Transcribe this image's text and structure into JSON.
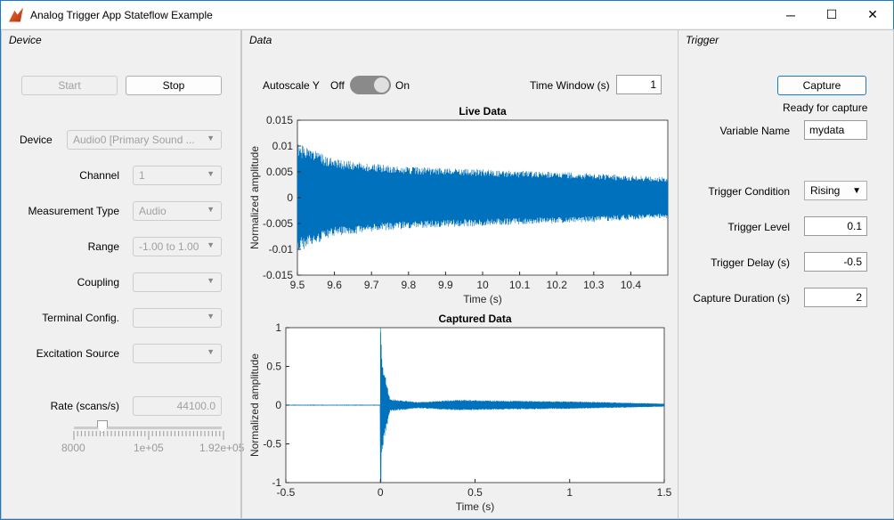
{
  "window": {
    "title": "Analog Trigger App Stateflow Example",
    "icon": "matlab-icon",
    "minimize": "─",
    "maximize": "☐",
    "close": "✕"
  },
  "device": {
    "title": "Device",
    "start": "Start",
    "stop": "Stop",
    "fields": [
      {
        "label": "Device",
        "value": "Audio0 [Primary Sound ..."
      },
      {
        "label": "Channel",
        "value": "1"
      },
      {
        "label": "Measurement Type",
        "value": "Audio"
      },
      {
        "label": "Range",
        "value": "-1.00 to 1.00"
      },
      {
        "label": "Coupling",
        "value": ""
      },
      {
        "label": "Terminal Config.",
        "value": ""
      },
      {
        "label": "Excitation Source",
        "value": ""
      }
    ],
    "rate_label": "Rate (scans/s)",
    "rate_value": "44100.0",
    "slider": {
      "min_label": "8000",
      "mid_label": "1e+05",
      "max_label": "1.92e+05",
      "min": 8000,
      "max": 192000,
      "value": 44100
    }
  },
  "data": {
    "title": "Data",
    "autoscale_label": "Autoscale Y",
    "off": "Off",
    "on": "On",
    "autoscale_on": false,
    "time_window_label": "Time Window (s)",
    "time_window": "1"
  },
  "trigger": {
    "title": "Trigger",
    "capture": "Capture",
    "status": "Ready for capture",
    "variable_label": "Variable Name",
    "variable": "mydata",
    "condition_label": "Trigger Condition",
    "condition": "Rising",
    "level_label": "Trigger Level",
    "level": "0.1",
    "delay_label": "Trigger Delay (s)",
    "delay": "-0.5",
    "duration_label": "Capture Duration (s)",
    "duration": "2"
  },
  "chart_data": [
    {
      "type": "line",
      "title": "Live Data",
      "xlabel": "Time (s)",
      "ylabel": "Normalized amplitude",
      "xlim": [
        9.5,
        10.5
      ],
      "ylim": [
        -0.015,
        0.015
      ],
      "xticks": [
        "9.5",
        "9.6",
        "9.7",
        "9.8",
        "9.9",
        "10",
        "10.1",
        "10.2",
        "10.3",
        "10.4"
      ],
      "yticks": [
        "0.015",
        "0.01",
        "0.005",
        "0",
        "-0.005",
        "-0.01",
        "-0.015"
      ],
      "color": "#0072bd",
      "envelope": {
        "x": [
          9.5,
          9.6,
          9.7,
          9.8,
          9.9,
          10.0,
          10.1,
          10.2,
          10.3,
          10.4,
          10.5
        ],
        "amp": [
          0.0105,
          0.0075,
          0.0066,
          0.006,
          0.0057,
          0.0055,
          0.0052,
          0.005,
          0.0047,
          0.0043,
          0.004
        ]
      }
    },
    {
      "type": "line",
      "title": "Captured Data",
      "xlabel": "Time (s)",
      "ylabel": "Normalized amplitude",
      "xlim": [
        -0.5,
        1.5
      ],
      "ylim": [
        -1,
        1
      ],
      "xticks": [
        "-0.5",
        "0",
        "0.5",
        "1",
        "1.5"
      ],
      "yticks": [
        "1",
        "0.5",
        "0",
        "-0.5",
        "-1"
      ],
      "color": "#0072bd",
      "envelope": {
        "x": [
          -0.5,
          0,
          0.01,
          0.05,
          0.2,
          0.4,
          0.6,
          1.0,
          1.5
        ],
        "amp": [
          0.002,
          1,
          0.6,
          0.08,
          0.04,
          0.07,
          0.06,
          0.05,
          0.02
        ]
      }
    }
  ]
}
